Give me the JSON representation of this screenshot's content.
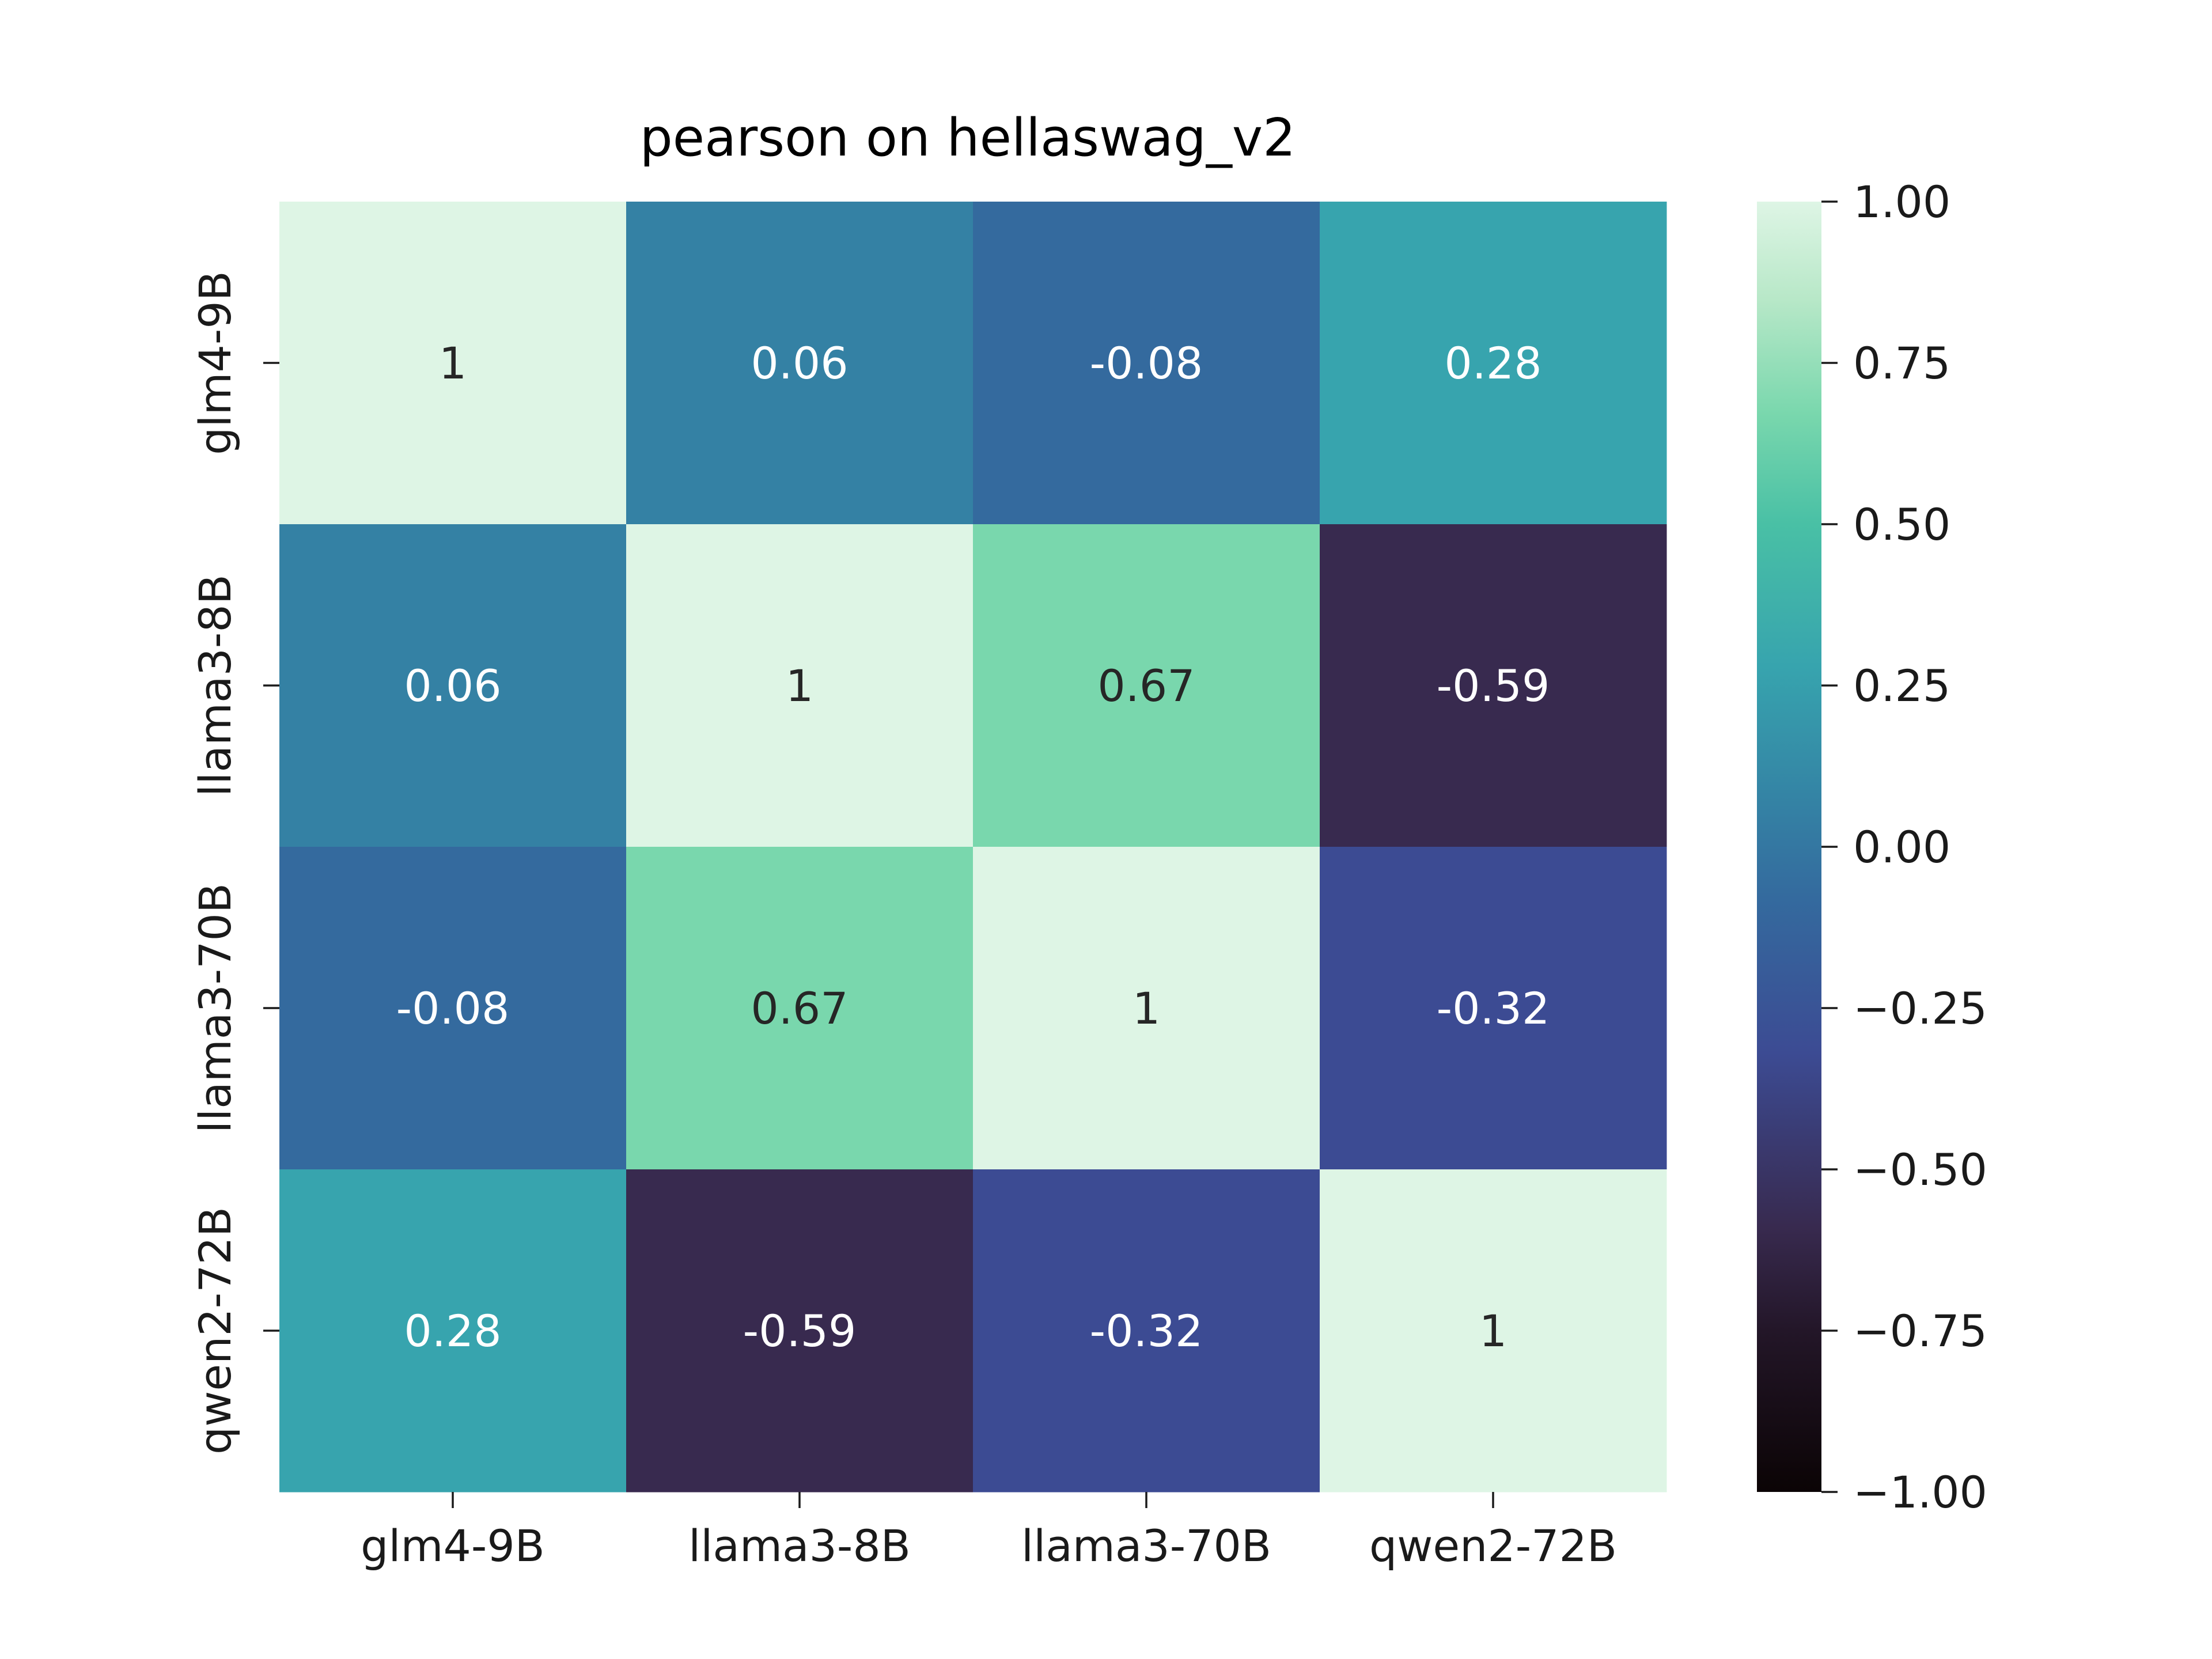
{
  "chart_data": {
    "type": "heatmap",
    "title": "pearson on hellaswag_v2",
    "x_categories": [
      "glm4-9B",
      "llama3-8B",
      "llama3-70B",
      "qwen2-72B"
    ],
    "y_categories": [
      "glm4-9B",
      "llama3-8B",
      "llama3-70B",
      "qwen2-72B"
    ],
    "values": [
      [
        1,
        0.06,
        -0.08,
        0.28
      ],
      [
        0.06,
        1,
        0.67,
        -0.59
      ],
      [
        -0.08,
        0.67,
        1,
        -0.32
      ],
      [
        0.28,
        -0.59,
        -0.32,
        1
      ]
    ],
    "cell_labels": [
      [
        "1",
        "0.06",
        "-0.08",
        "0.28"
      ],
      [
        "0.06",
        "1",
        "0.67",
        "-0.59"
      ],
      [
        "-0.08",
        "0.67",
        "1",
        "-0.32"
      ],
      [
        "0.28",
        "-0.59",
        "-0.32",
        "1"
      ]
    ],
    "colorbar": {
      "range": [
        -1.0,
        1.0
      ],
      "ticks": [
        1.0,
        0.75,
        0.5,
        0.25,
        0.0,
        -0.25,
        -0.5,
        -0.75,
        -1.0
      ],
      "tick_labels": [
        "1.00",
        "0.75",
        "0.50",
        "0.25",
        "0.00",
        "−0.25",
        "−0.50",
        "−0.75",
        "−1.00"
      ],
      "colormap": "mako",
      "colormap_stops": [
        {
          "v": -1.0,
          "color": "#0b0405"
        },
        {
          "v": -0.75,
          "color": "#231628"
        },
        {
          "v": -0.59,
          "color": "#382a4f"
        },
        {
          "v": -0.32,
          "color": "#3c4b93"
        },
        {
          "v": -0.08,
          "color": "#346a9e"
        },
        {
          "v": 0.06,
          "color": "#3481a4"
        },
        {
          "v": 0.28,
          "color": "#37a4ae"
        },
        {
          "v": 0.5,
          "color": "#49c0a5"
        },
        {
          "v": 0.67,
          "color": "#79d7ad"
        },
        {
          "v": 0.85,
          "color": "#b8e8c8"
        },
        {
          "v": 1.0,
          "color": "#def5e5"
        }
      ]
    },
    "xlabel": "",
    "ylabel": ""
  }
}
